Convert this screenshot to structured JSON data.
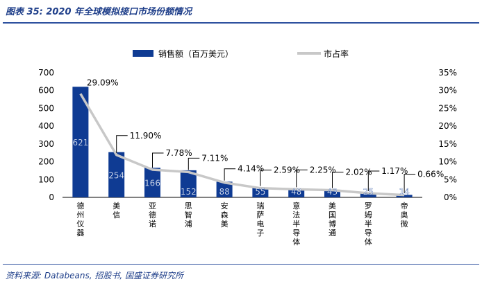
{
  "title": "图表 35:  2020 年全球模拟接口市场份额情况",
  "source": "资料来源: Databeans, 招股书, 国盛证券研究所",
  "colors": {
    "bar": "#0f3b93",
    "line": "#c8c8c8",
    "text": "#1f3f8a"
  },
  "chart_data": {
    "type": "bar",
    "categories": [
      "德州仪器",
      "美信",
      "亚德诺",
      "思智浦",
      "安森美",
      "瑞萨电子",
      "意法半导体",
      "美国博通",
      "罗姆半导体",
      "帝奥微"
    ],
    "series": [
      {
        "name": "销售额（百万美元）",
        "type": "bar",
        "axis": "left",
        "values": [
          621,
          254,
          166,
          152,
          88,
          55,
          48,
          43,
          25,
          14
        ]
      },
      {
        "name": "市占率",
        "type": "line",
        "axis": "right",
        "values": [
          29.09,
          11.9,
          7.78,
          7.11,
          4.14,
          2.59,
          2.25,
          2.02,
          1.17,
          0.66
        ],
        "labels": [
          "29.09%",
          "11.90%",
          "7.78%",
          "7.11%",
          "4.14%",
          "2.59%",
          "2.25%",
          "2.02%",
          "1.17%",
          "0.66%"
        ]
      }
    ],
    "left_axis": {
      "min": 0,
      "max": 700,
      "ticks": [
        "0",
        "100",
        "200",
        "300",
        "400",
        "500",
        "600",
        "700"
      ]
    },
    "right_axis": {
      "min": 0,
      "max": 35,
      "ticks": [
        "0%",
        "5%",
        "10%",
        "15%",
        "20%",
        "25%",
        "30%",
        "35%"
      ]
    },
    "legend": [
      "销售额（百万美元）",
      "市占率"
    ],
    "legend_position": "top"
  }
}
